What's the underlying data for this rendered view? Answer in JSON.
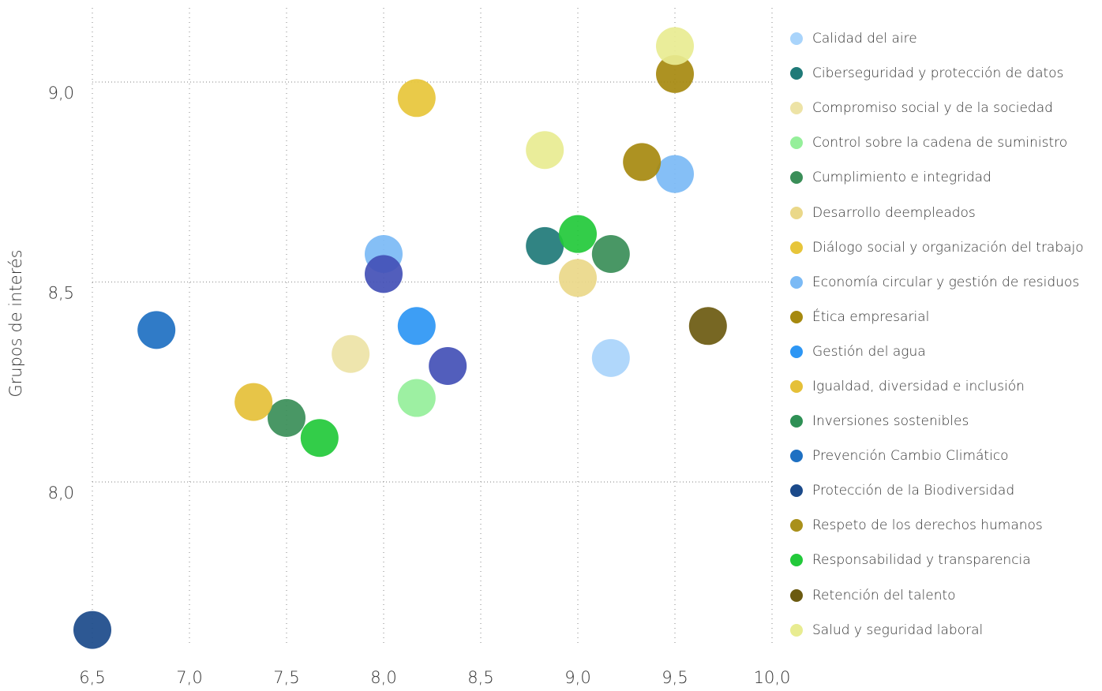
{
  "chart_data": {
    "type": "scatter",
    "title": "",
    "xlabel": "",
    "ylabel": "Grupos de interés",
    "xlim": [
      6.5,
      10.0
    ],
    "ylim": [
      7.6,
      9.2
    ],
    "x_ticks": [
      "6,5",
      "7,0",
      "7,5",
      "8,0",
      "8,5",
      "9,0",
      "9,5",
      "10,0"
    ],
    "y_ticks": [
      "8,0",
      "8,5",
      "9,0"
    ],
    "grid": "dotted",
    "legend_position": "right",
    "series": [
      {
        "name": "Calidad del aire",
        "color": "#a9d4fb",
        "points": [
          [
            9.17,
            8.31
          ]
        ]
      },
      {
        "name": "Ciberseguridad y protección de datos",
        "color": "#1f7a78",
        "points": [
          [
            8.83,
            8.59
          ]
        ]
      },
      {
        "name": "Compromiso social y de la sociedad",
        "color": "#ede3a6",
        "points": [
          [
            7.83,
            8.32
          ]
        ]
      },
      {
        "name": "Control sobre la cadena de suministro",
        "color": "#95ef9a",
        "points": [
          [
            8.17,
            8.21
          ]
        ]
      },
      {
        "name": "Cumplimiento e integridad",
        "color": "#3a8e58",
        "points": [
          [
            7.5,
            8.16
          ],
          [
            9.17,
            8.57
          ]
        ]
      },
      {
        "name": "Desarrollo deempleados",
        "color": "#ead889",
        "points": [
          [
            9.0,
            8.51
          ]
        ]
      },
      {
        "name": "Diálogo social y organización del trabajo",
        "color": "#e7c53a",
        "points": [
          [
            8.17,
            8.96
          ]
        ]
      },
      {
        "name": "Economía circular y gestión de residuos",
        "color": "#7bbaf5",
        "points": [
          [
            8.0,
            8.57
          ],
          [
            9.5,
            8.77
          ]
        ]
      },
      {
        "name": "Ética empresarial",
        "color": "#a6890f",
        "points": [
          [
            9.33,
            8.8
          ],
          [
            9.5,
            9.02
          ]
        ]
      },
      {
        "name": "Gestión del agua",
        "color": "#2d96f4",
        "points": [
          [
            8.17,
            8.39
          ]
        ]
      },
      {
        "name": "Igualdad, diversidad e inclusión",
        "color": "#e5c038",
        "points": [
          [
            7.33,
            8.2
          ]
        ]
      },
      {
        "name": "Inversiones sostenibles",
        "color": "#2e9055",
        "points": []
      },
      {
        "name": "Prevención Cambio Climático",
        "color": "#1e70c2",
        "points": [
          [
            6.83,
            8.38
          ]
        ]
      },
      {
        "name": "Protección de la Biodiversidad",
        "color": "#1b4a8a",
        "points": [
          [
            6.5,
            7.63
          ]
        ]
      },
      {
        "name": "Respeto de los derechos humanos",
        "color": "#a9901a",
        "points": []
      },
      {
        "name": "Responsabilidad y transparencia",
        "color": "#22c93a",
        "points": [
          [
            7.67,
            8.11
          ],
          [
            9.0,
            8.62
          ]
        ]
      },
      {
        "name": "Retención del talento",
        "color": "#6b5a10",
        "points": [
          [
            9.67,
            8.39
          ]
        ]
      },
      {
        "name": "Salud y seguridad laboral",
        "color": "#e8ec91",
        "points": [
          [
            9.5,
            9.09
          ],
          [
            8.83,
            8.83
          ]
        ]
      },
      {
        "name": "",
        "color": "#4350b6",
        "points": [
          [
            8.0,
            8.52
          ],
          [
            8.33,
            8.29
          ]
        ]
      }
    ]
  }
}
